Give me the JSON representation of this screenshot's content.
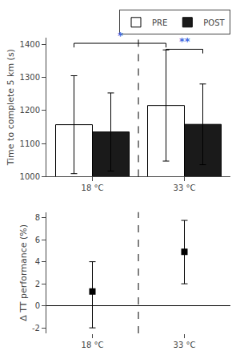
{
  "chart_data": [
    {
      "type": "bar",
      "ylabel": "Time to complete 5 km (s)",
      "categories": [
        "18 °C",
        "33 °C"
      ],
      "series": [
        {
          "name": "PRE",
          "color": "#ffffff",
          "values": [
            1157,
            1215
          ],
          "errors": [
            148,
            168
          ]
        },
        {
          "name": "POST",
          "color": "#1a1a1a",
          "values": [
            1135,
            1158
          ],
          "errors": [
            118,
            122
          ]
        }
      ],
      "ylim": [
        1000,
        1420
      ],
      "yticks": [
        1000,
        1100,
        1200,
        1300,
        1400
      ],
      "grid": false,
      "legend": "upper right",
      "annotations": [
        {
          "text": "*",
          "color": "#4169E1",
          "y": 1403,
          "from": {
            "category": "18 °C",
            "series": "PRE"
          },
          "to": {
            "category": "33 °C",
            "series": "PRE"
          }
        },
        {
          "text": "**",
          "color": "#4169E1",
          "y": 1385,
          "from": {
            "category": "33 °C",
            "series": "PRE"
          },
          "to": {
            "category": "33 °C",
            "series": "POST"
          }
        }
      ]
    },
    {
      "type": "scatter",
      "ylabel": "Δ TT performance (%)",
      "categories": [
        "18 °C",
        "33 °C"
      ],
      "values": [
        1.3,
        4.9
      ],
      "errors_low": [
        3.3,
        2.9
      ],
      "errors_high": [
        2.7,
        2.85
      ],
      "color": "#000000",
      "marker": "square",
      "ylim": [
        -2.5,
        8.5
      ],
      "yticks": [
        -2,
        0,
        2,
        4,
        6,
        8
      ],
      "grid": false
    }
  ]
}
